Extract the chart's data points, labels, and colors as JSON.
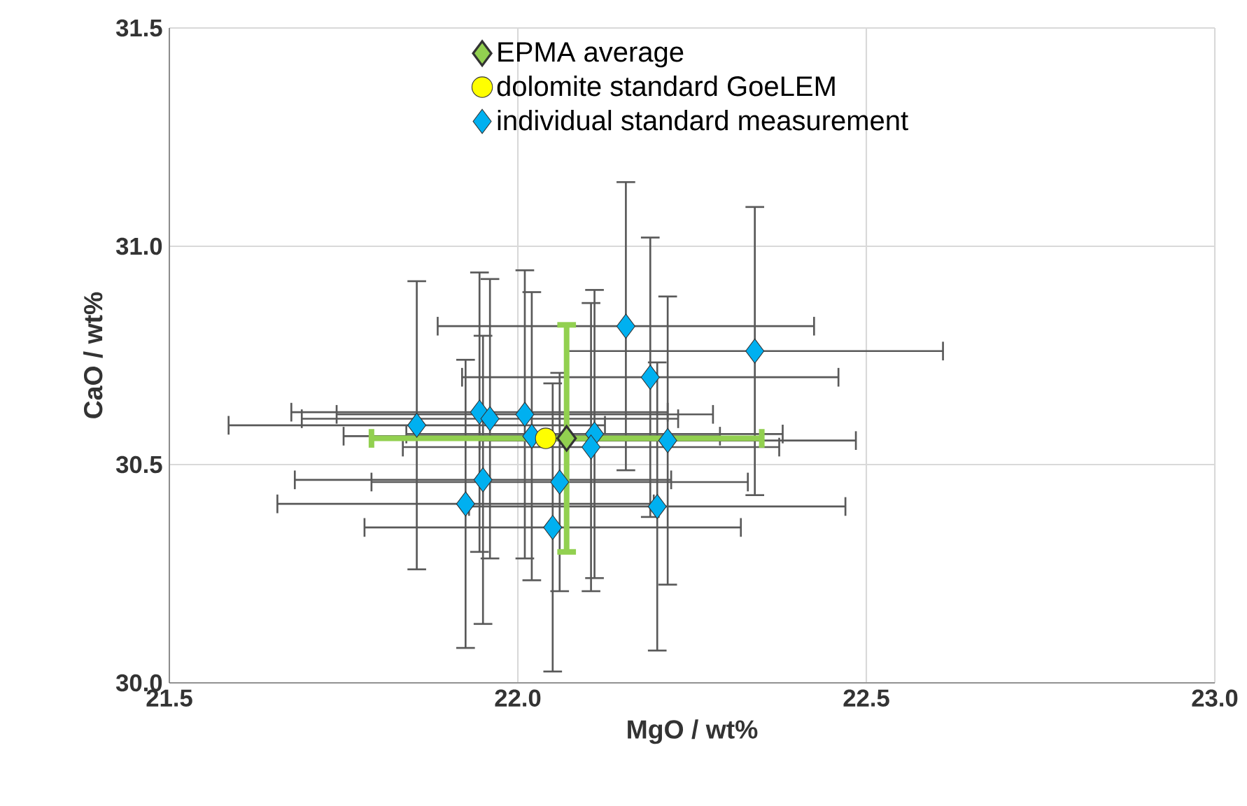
{
  "chart_data": {
    "type": "scatter",
    "xlabel": "MgO / wt%",
    "ylabel": "CaO / wt%",
    "xlim": [
      21.5,
      23.0
    ],
    "ylim": [
      30.0,
      31.5
    ],
    "xticks": [
      {
        "value": 21.5,
        "label": "21.5"
      },
      {
        "value": 22.0,
        "label": "22.0"
      },
      {
        "value": 22.5,
        "label": "22.5"
      },
      {
        "value": 23.0,
        "label": "23.0"
      }
    ],
    "yticks": [
      {
        "value": 30.0,
        "label": "30.0"
      },
      {
        "value": 30.5,
        "label": "30.5"
      },
      {
        "value": 31.0,
        "label": "31.0"
      },
      {
        "value": 31.5,
        "label": "31.5"
      }
    ],
    "grid": true,
    "legend": "top",
    "series": [
      {
        "name": "EPMA average",
        "color": "#92d050",
        "marker": "diamond",
        "x": [
          22.07
        ],
        "values": [
          30.56
        ],
        "errors": [
          0.26
        ],
        "xerrors": [
          0.28
        ]
      },
      {
        "name": "dolomite standard GoeLEM",
        "color": "#ffff00",
        "marker": "circle",
        "x": [
          22.04
        ],
        "values": [
          30.56
        ]
      },
      {
        "name": "individual standard measurement",
        "color": "#00b0f0",
        "marker": "diamond",
        "x": [
          21.855,
          21.945,
          21.96,
          22.01,
          22.02,
          21.95,
          21.925,
          22.05,
          22.06,
          22.11,
          22.105,
          22.155,
          22.19,
          22.215,
          22.2,
          22.34
        ],
        "values": [
          30.59,
          30.62,
          30.605,
          30.615,
          30.565,
          30.465,
          30.41,
          30.356,
          30.46,
          30.57,
          30.54,
          30.817,
          30.7,
          30.555,
          30.404,
          30.76
        ],
        "errors": [
          0.33,
          0.32,
          0.32,
          0.33,
          0.33,
          0.33,
          0.33,
          0.33,
          0.25,
          0.33,
          0.33,
          0.33,
          0.32,
          0.33,
          0.33,
          0.33
        ],
        "xerrors": [
          0.27,
          0.27,
          0.27,
          0.27,
          0.27,
          0.27,
          0.27,
          0.27,
          0.27,
          0.27,
          0.27,
          0.27,
          0.27,
          0.27,
          0.27,
          0.27
        ]
      }
    ]
  }
}
